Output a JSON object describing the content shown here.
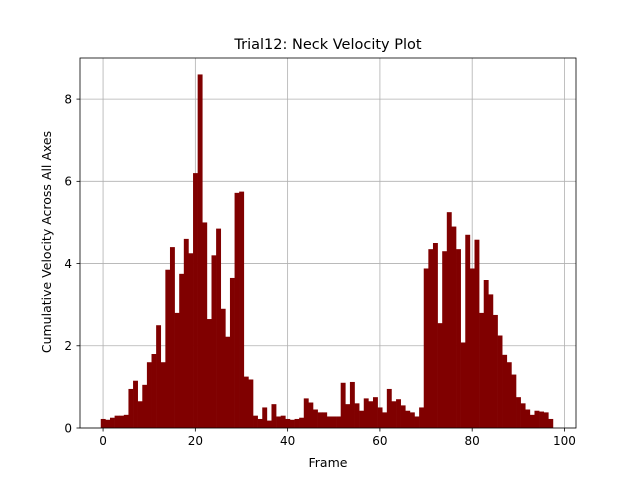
{
  "chart_data": {
    "type": "bar",
    "title": "Trial12: Neck Velocity Plot",
    "xlabel": "Frame",
    "ylabel": "Cumulative Velocity Across All Axes",
    "xlim": [
      -5,
      102.5
    ],
    "ylim": [
      0,
      9
    ],
    "xticks": [
      0,
      20,
      40,
      60,
      80,
      100
    ],
    "yticks": [
      0,
      2,
      4,
      6,
      8
    ],
    "grid": true,
    "bar_color": "#800000",
    "bar_width": 1,
    "x": [
      0,
      1,
      2,
      3,
      4,
      5,
      6,
      7,
      8,
      9,
      10,
      11,
      12,
      13,
      14,
      15,
      16,
      17,
      18,
      19,
      20,
      21,
      22,
      23,
      24,
      25,
      26,
      27,
      28,
      29,
      30,
      31,
      32,
      33,
      34,
      35,
      36,
      37,
      38,
      39,
      40,
      41,
      42,
      43,
      44,
      45,
      46,
      47,
      48,
      49,
      50,
      51,
      52,
      53,
      54,
      55,
      56,
      57,
      58,
      59,
      60,
      61,
      62,
      63,
      64,
      65,
      66,
      67,
      68,
      69,
      70,
      71,
      72,
      73,
      74,
      75,
      76,
      77,
      78,
      79,
      80,
      81,
      82,
      83,
      84,
      85,
      86,
      87,
      88,
      89,
      90,
      91,
      92,
      93,
      94,
      95,
      96,
      97
    ],
    "values": [
      0.22,
      0.2,
      0.25,
      0.3,
      0.3,
      0.32,
      0.95,
      1.15,
      0.65,
      1.05,
      1.6,
      1.8,
      2.5,
      1.6,
      3.85,
      4.4,
      2.8,
      3.75,
      4.6,
      4.25,
      6.2,
      8.6,
      5.0,
      2.65,
      4.2,
      4.85,
      2.9,
      2.22,
      3.65,
      5.72,
      5.75,
      1.25,
      1.18,
      0.3,
      0.22,
      0.5,
      0.18,
      0.58,
      0.28,
      0.3,
      0.22,
      0.2,
      0.22,
      0.25,
      0.72,
      0.62,
      0.45,
      0.38,
      0.38,
      0.28,
      0.28,
      0.28,
      1.1,
      0.58,
      1.12,
      0.6,
      0.42,
      0.72,
      0.65,
      0.75,
      0.5,
      0.38,
      0.95,
      0.65,
      0.7,
      0.55,
      0.42,
      0.38,
      0.28,
      0.5,
      3.88,
      4.35,
      4.5,
      2.55,
      4.3,
      5.25,
      4.9,
      4.35,
      2.08,
      4.7,
      3.88,
      4.58,
      2.8,
      3.6,
      3.25,
      2.75,
      2.25,
      1.78,
      1.6,
      1.3,
      0.75,
      0.6,
      0.45,
      0.32,
      0.42,
      0.4,
      0.38,
      0.22
    ]
  }
}
